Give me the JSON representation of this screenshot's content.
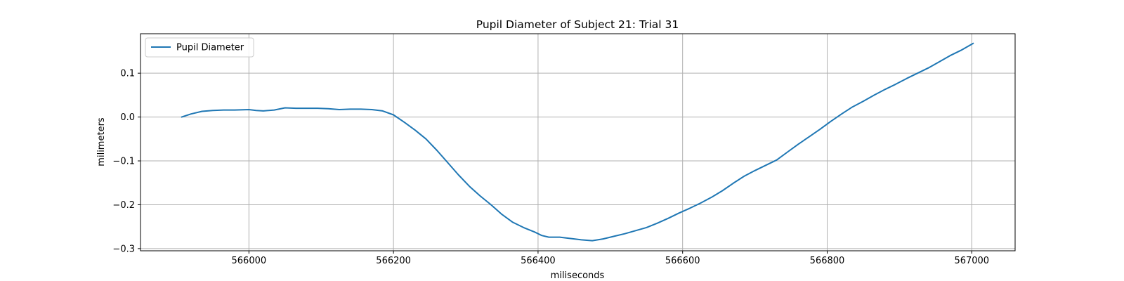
{
  "chart_data": {
    "type": "line",
    "title": "Pupil Diameter of Subject 21: Trial 31",
    "xlabel": "miliseconds",
    "ylabel": "milimeters",
    "xlim": [
      565850,
      567060
    ],
    "ylim": [
      -0.305,
      0.19
    ],
    "xticks": [
      566000,
      566200,
      566400,
      566600,
      566800,
      567000
    ],
    "xtick_labels": [
      "566000",
      "566200",
      "566400",
      "566600",
      "566800",
      "567000"
    ],
    "yticks": [
      -0.3,
      -0.2,
      -0.1,
      0.0,
      0.1
    ],
    "ytick_labels": [
      "−0.3",
      "−0.2",
      "−0.1",
      "0.0",
      "0.1"
    ],
    "grid": true,
    "legend": {
      "position": "upper-left"
    },
    "colors": {
      "series": "#1f77b4",
      "grid": "#b0b0b0",
      "frame": "#000000"
    },
    "series": [
      {
        "name": "Pupil Diameter",
        "x": [
          565907,
          565920,
          565935,
          565950,
          565965,
          565980,
          566000,
          566010,
          566020,
          566035,
          566050,
          566065,
          566080,
          566095,
          566110,
          566125,
          566140,
          566155,
          566170,
          566185,
          566200,
          566215,
          566230,
          566245,
          566260,
          566275,
          566290,
          566305,
          566320,
          566335,
          566350,
          566365,
          566380,
          566395,
          566405,
          566415,
          566430,
          566445,
          566460,
          566475,
          566490,
          566505,
          566520,
          566535,
          566550,
          566565,
          566580,
          566595,
          566610,
          566625,
          566640,
          566655,
          566670,
          566685,
          566700,
          566715,
          566730,
          566745,
          566760,
          566775,
          566790,
          566805,
          566820,
          566835,
          566850,
          566865,
          566880,
          566895,
          566910,
          566925,
          566940,
          566955,
          566970,
          566985,
          567002
        ],
        "y": [
          0.0,
          0.007,
          0.013,
          0.015,
          0.016,
          0.016,
          0.017,
          0.015,
          0.014,
          0.016,
          0.021,
          0.02,
          0.02,
          0.02,
          0.019,
          0.017,
          0.018,
          0.018,
          0.017,
          0.014,
          0.005,
          -0.012,
          -0.03,
          -0.05,
          -0.076,
          -0.104,
          -0.132,
          -0.158,
          -0.18,
          -0.2,
          -0.222,
          -0.24,
          -0.252,
          -0.262,
          -0.27,
          -0.274,
          -0.274,
          -0.277,
          -0.28,
          -0.282,
          -0.278,
          -0.272,
          -0.266,
          -0.259,
          -0.252,
          -0.242,
          -0.231,
          -0.219,
          -0.208,
          -0.196,
          -0.183,
          -0.168,
          -0.151,
          -0.135,
          -0.122,
          -0.11,
          -0.098,
          -0.08,
          -0.062,
          -0.045,
          -0.028,
          -0.01,
          0.007,
          0.023,
          0.036,
          0.05,
          0.063,
          0.075,
          0.088,
          0.1,
          0.112,
          0.126,
          0.14,
          0.152,
          0.168
        ]
      }
    ]
  }
}
